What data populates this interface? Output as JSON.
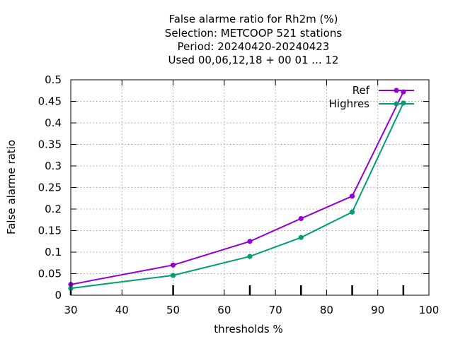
{
  "chart_data": {
    "type": "line",
    "title_lines": [
      "False alarme ratio  for Rh2m (%)",
      "Selection: METCOOP    521 stations",
      "Period: 20240420-20240423",
      "Used  00,06,12,18 + 00 01 ... 12"
    ],
    "xlabel": "thresholds %",
    "ylabel": "False alarme ratio",
    "xlim": [
      30,
      100
    ],
    "ylim": [
      0,
      0.5
    ],
    "x_ticks": [
      30,
      40,
      50,
      60,
      70,
      80,
      90,
      100
    ],
    "y_ticks": [
      0,
      0.05,
      0.1,
      0.15,
      0.2,
      0.25,
      0.3,
      0.35,
      0.4,
      0.45,
      0.5
    ],
    "y_tick_labels": [
      "0",
      "0.05",
      "0.1",
      "0.15",
      "0.2",
      "0.25",
      "0.3",
      "0.35",
      "0.4",
      "0.45",
      "0.5"
    ],
    "grid": true,
    "legend_position": "top-right",
    "series": [
      {
        "name": "Ref",
        "color": "#9400d3",
        "x": [
          30,
          50,
          65,
          75,
          85,
          95
        ],
        "y": [
          0.025,
          0.07,
          0.125,
          0.178,
          0.23,
          0.472
        ]
      },
      {
        "name": "Highres",
        "color": "#009e73",
        "x": [
          30,
          50,
          65,
          75,
          85,
          95
        ],
        "y": [
          0.016,
          0.046,
          0.09,
          0.134,
          0.193,
          0.446
        ]
      }
    ]
  }
}
